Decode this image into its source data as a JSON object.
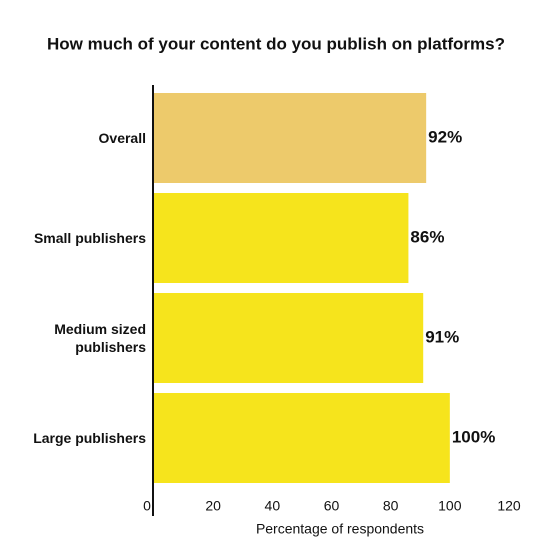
{
  "chart_data": {
    "type": "hbar",
    "title": "How much of your content do you publish on platforms?",
    "categories": [
      "Overall",
      "Small publishers",
      "Medium sized publishers",
      "Large publishers"
    ],
    "values": [
      92,
      86,
      91,
      100
    ],
    "value_labels": [
      "92%",
      "86%",
      "91%",
      "100%"
    ],
    "colors": [
      "#edca6b",
      "#f6e41c",
      "#f6e41c",
      "#f6e41c"
    ],
    "xlabel": "Percentage of respondents",
    "xlim": [
      0,
      120
    ],
    "xticks": [
      0,
      20,
      40,
      60,
      80,
      100,
      120
    ]
  }
}
